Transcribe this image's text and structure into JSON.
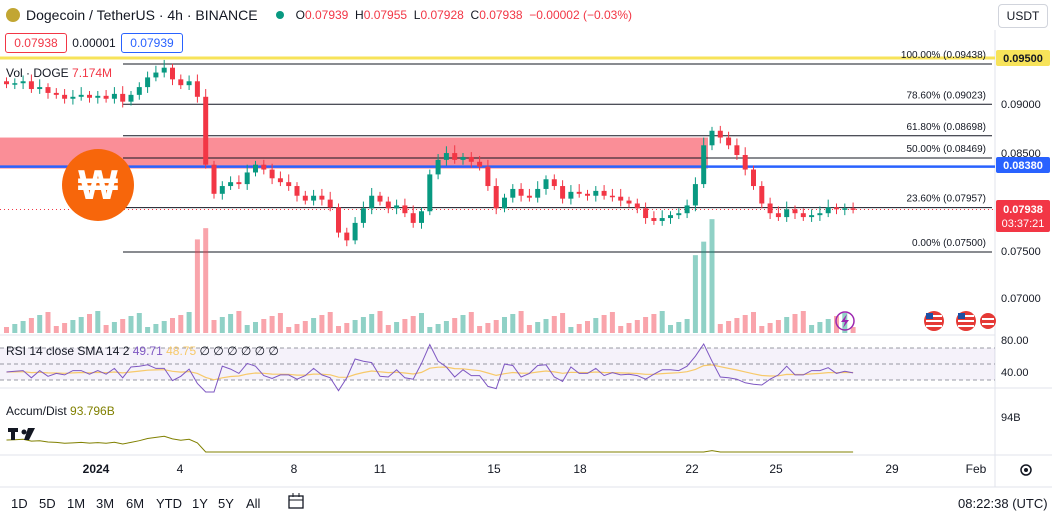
{
  "header": {
    "symbol_title": "Dogecoin / TetherUS · 4h · BINANCE",
    "ohlc": {
      "o_label": "O",
      "o": "0.07939",
      "h_label": "H",
      "h": "0.07955",
      "l_label": "L",
      "l": "0.07928",
      "c_label": "C",
      "c": "0.07938",
      "change": "−0.00002 (−0.03%)"
    },
    "sell_price": "0.07938",
    "spread": "0.00001",
    "buy_price": "0.07939",
    "currency": "USDT"
  },
  "volume_legend": {
    "label": "Vol · DOGE",
    "value": "7.174M"
  },
  "rsi_legend": {
    "label": "RSI 14 close SMA 14 2",
    "rsi": "49.71",
    "sma": "48.75",
    "extra": "∅ ∅ ∅ ∅ ∅ ∅"
  },
  "accum_legend": {
    "label": "Accum/Dist",
    "value": "93.796B"
  },
  "price_axis": {
    "labels": [
      "0.09000",
      "0.08500",
      "0.07500",
      "0.07000"
    ],
    "tag_yellow": "0.09500",
    "tag_blue": "0.08380",
    "tag_current_price": "0.07938",
    "tag_countdown": "03:37:21",
    "rsi_labels": [
      "80.00",
      "40.00"
    ],
    "ad_label": "94B"
  },
  "fib_labels": [
    "100.00% (0.09438)",
    "78.60% (0.09023)",
    "61.80% (0.08698)",
    "50.00% (0.08469)",
    "23.60% (0.07957)",
    "0.00% (0.07500)"
  ],
  "time_axis": [
    "2024",
    "4",
    "8",
    "11",
    "15",
    "18",
    "22",
    "25",
    "29",
    "Feb"
  ],
  "timeframes": [
    "1D",
    "5D",
    "1M",
    "3M",
    "6M",
    "YTD",
    "1Y",
    "5Y",
    "All"
  ],
  "clock": "08:22:38 (UTC)",
  "colors": {
    "up": "#089981",
    "down": "#f23645",
    "zone": "#f7525f",
    "blue_line": "#2962ff",
    "yellow_line": "#f7e35a",
    "rsi": "#7e57c2",
    "rsi_sma": "#f7c96a",
    "ad": "#808000"
  },
  "chart_data": {
    "type": "candlestick",
    "interval": "4h",
    "price_range": [
      0.0675,
      0.0975
    ],
    "fib_levels": [
      0.09438,
      0.09023,
      0.08698,
      0.08469,
      0.07957,
      0.075
    ],
    "horizontal_levels": {
      "yellow": 0.095,
      "blue": 0.0838
    },
    "resistance_zone": [
      0.0836,
      0.0868
    ],
    "close": [
      0.0923,
      0.0924,
      0.0926,
      0.0918,
      0.092,
      0.0914,
      0.0912,
      0.0908,
      0.091,
      0.0912,
      0.0909,
      0.0911,
      0.0908,
      0.0913,
      0.0905,
      0.0912,
      0.092,
      0.093,
      0.0935,
      0.094,
      0.0928,
      0.0922,
      0.0926,
      0.091,
      0.084,
      0.081,
      0.0818,
      0.0822,
      0.082,
      0.0832,
      0.084,
      0.0835,
      0.0826,
      0.0822,
      0.0818,
      0.0808,
      0.0803,
      0.0808,
      0.0804,
      0.0796,
      0.077,
      0.0762,
      0.078,
      0.0795,
      0.0808,
      0.0802,
      0.0795,
      0.0798,
      0.079,
      0.078,
      0.0792,
      0.083,
      0.0845,
      0.0852,
      0.0845,
      0.0848,
      0.0843,
      0.0838,
      0.0818,
      0.0795,
      0.0806,
      0.0815,
      0.0808,
      0.0806,
      0.0815,
      0.0825,
      0.0818,
      0.0805,
      0.0812,
      0.081,
      0.0808,
      0.0813,
      0.0808,
      0.0807,
      0.0803,
      0.08,
      0.0795,
      0.0785,
      0.0782,
      0.0785,
      0.0788,
      0.079,
      0.0798,
      0.082,
      0.086,
      0.0875,
      0.0868,
      0.086,
      0.085,
      0.0835,
      0.0818,
      0.08,
      0.079,
      0.0786,
      0.0794,
      0.079,
      0.0786,
      0.0788,
      0.079,
      0.0796,
      0.0794,
      0.0795,
      0.07938
    ]
  }
}
